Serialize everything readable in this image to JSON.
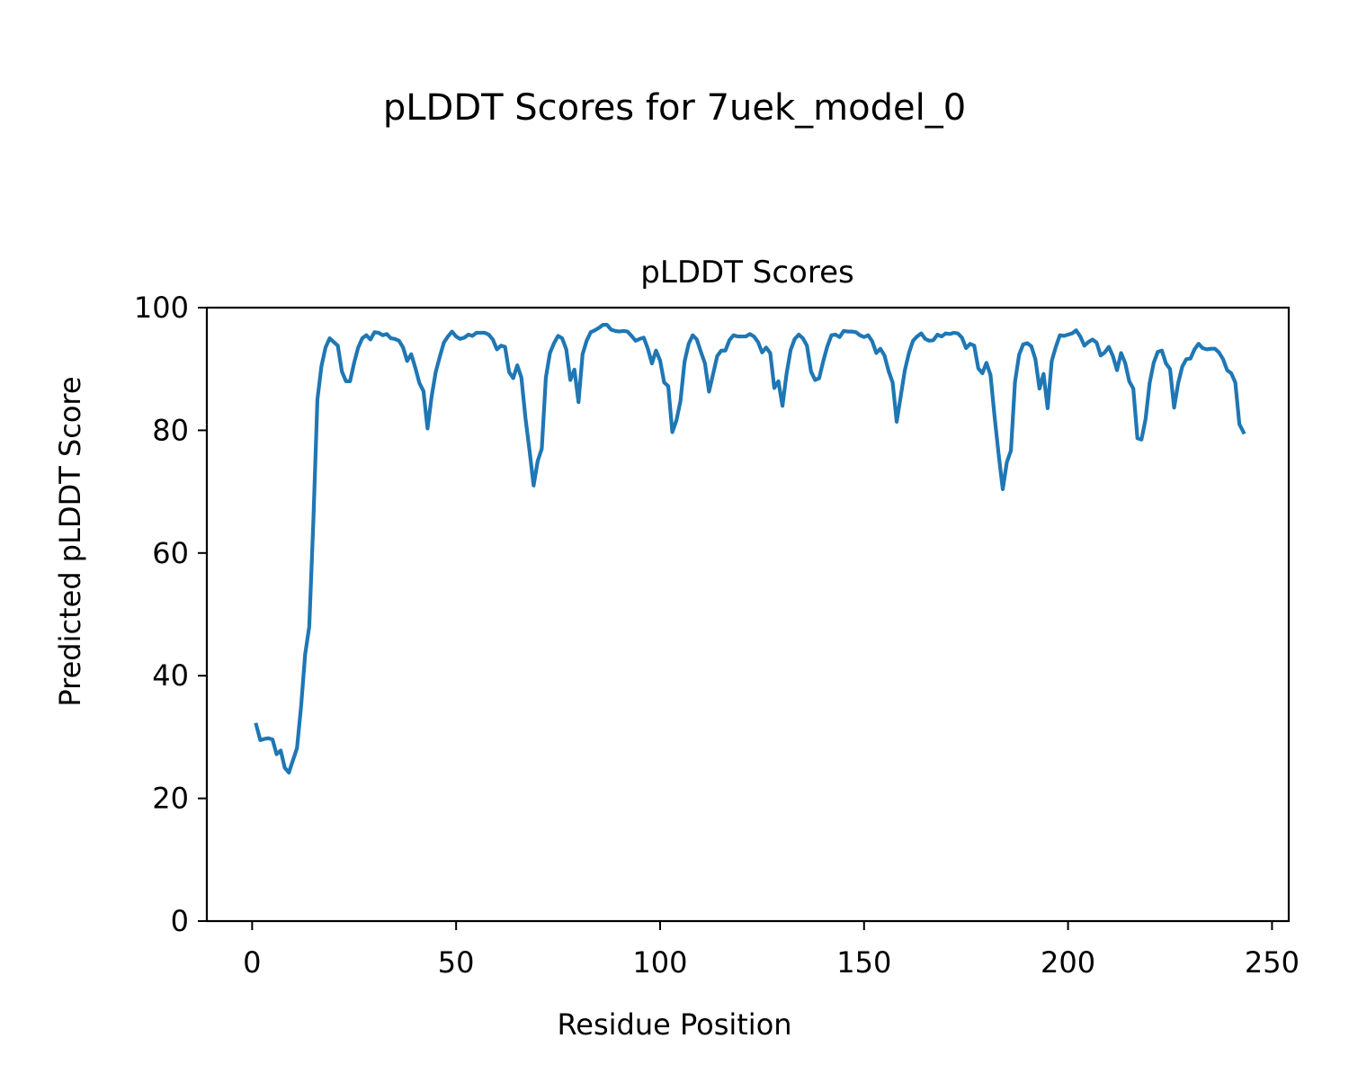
{
  "figure": {
    "suptitle": "pLDDT Scores for 7uek_model_0"
  },
  "chart_data": {
    "type": "line",
    "title": "pLDDT Scores",
    "xlabel": "Residue Position",
    "ylabel": "Predicted pLDDT Score",
    "xlim": [
      -11.1,
      254.1
    ],
    "ylim": [
      0,
      100
    ],
    "xticks": [
      0,
      50,
      100,
      150,
      200,
      250
    ],
    "yticks": [
      0,
      20,
      40,
      60,
      80,
      100
    ],
    "grid": false,
    "legend": null,
    "colors": {
      "line": "#1f77b4",
      "axes": "#000000",
      "background": "#ffffff"
    },
    "series": [
      {
        "x": [
          1,
          2,
          3,
          4,
          5,
          6,
          7,
          8,
          9,
          10,
          11,
          12,
          13,
          14,
          15,
          16,
          17,
          18,
          19,
          20,
          21,
          22,
          23,
          24,
          25,
          26,
          27,
          28,
          29,
          30,
          31,
          32,
          33,
          34,
          35,
          36,
          37,
          38,
          39,
          40,
          41,
          42,
          43,
          44,
          45,
          46,
          47,
          48,
          49,
          50,
          51,
          52,
          53,
          54,
          55,
          56,
          57,
          58,
          59,
          60,
          61,
          62,
          63,
          64,
          65,
          66,
          67,
          68,
          69,
          70,
          71,
          72,
          73,
          74,
          75,
          76,
          77,
          78,
          79,
          80,
          81,
          82,
          83,
          84,
          85,
          86,
          87,
          88,
          89,
          90,
          91,
          92,
          93,
          94,
          95,
          96,
          97,
          98,
          99,
          100,
          101,
          102,
          103,
          104,
          105,
          106,
          107,
          108,
          109,
          110,
          111,
          112,
          113,
          114,
          115,
          116,
          117,
          118,
          119,
          120,
          121,
          122,
          123,
          124,
          125,
          126,
          127,
          128,
          129,
          130,
          131,
          132,
          133,
          134,
          135,
          136,
          137,
          138,
          139,
          140,
          141,
          142,
          143,
          144,
          145,
          146,
          147,
          148,
          149,
          150,
          151,
          152,
          153,
          154,
          155,
          156,
          157,
          158,
          159,
          160,
          161,
          162,
          163,
          164,
          165,
          166,
          167,
          168,
          169,
          170,
          171,
          172,
          173,
          174,
          175,
          176,
          177,
          178,
          179,
          180,
          181,
          182,
          183,
          184,
          185,
          186,
          187,
          188,
          189,
          190,
          191,
          192,
          193,
          194,
          195,
          196,
          197,
          198,
          199,
          200,
          201,
          202,
          203,
          204,
          205,
          206,
          207,
          208,
          209,
          210,
          211,
          212,
          213,
          214,
          215,
          216,
          217,
          218,
          219,
          220,
          221,
          222,
          223,
          224,
          225,
          226,
          227,
          228,
          229,
          230,
          231,
          232,
          233,
          234,
          235,
          236,
          237,
          238,
          239,
          240,
          241,
          242,
          243
        ],
        "values": [
          32,
          29.5,
          29.7,
          29.8,
          29.6,
          27.2,
          27.8,
          25,
          24.2,
          26.2,
          28.2,
          35,
          43.5,
          48,
          65,
          85,
          90.5,
          93.5,
          95,
          94.4,
          93.8,
          89.6,
          88,
          88,
          91,
          93.5,
          95,
          95.5,
          94.8,
          96,
          95.9,
          95.5,
          95.7,
          95,
          94.9,
          94.6,
          93.5,
          91.3,
          92.4,
          90.2,
          87.7,
          86.4,
          80.3,
          85.5,
          89.5,
          92,
          94.3,
          95.3,
          96.1,
          95.3,
          94.9,
          95.1,
          95.6,
          95.4,
          95.9,
          95.9,
          95.9,
          95.6,
          94.8,
          93.2,
          93.8,
          93.6,
          89.5,
          88.5,
          90.6,
          88.6,
          82,
          76.7,
          71,
          75,
          77,
          88.6,
          92.6,
          94.2,
          95.4,
          95,
          93.2,
          88.2,
          89.9,
          84.6,
          92.4,
          94.6,
          96,
          96.3,
          96.7,
          97.2,
          97.2,
          96.4,
          96.2,
          96.1,
          96.2,
          96.1,
          95.4,
          94.6,
          94.9,
          95.1,
          93.3,
          90.9,
          93,
          91.4,
          87.8,
          87.2,
          79.7,
          81.6,
          84.8,
          91.2,
          94.1,
          95.5,
          94.8,
          92.8,
          90.9,
          86.3,
          89.2,
          92.1,
          93,
          93,
          94.7,
          95.5,
          95.3,
          95.3,
          95.3,
          95.7,
          95.3,
          94.4,
          92.7,
          93.5,
          92.6,
          86.9,
          88,
          84,
          89.2,
          93.1,
          94.9,
          95.6,
          95,
          93.8,
          89.6,
          88.2,
          88.5,
          91.3,
          93.7,
          95.5,
          95.6,
          95.2,
          96.2,
          96.1,
          96.1,
          96,
          95.5,
          95.2,
          95.5,
          94.5,
          92.6,
          93.3,
          92.2,
          89.7,
          87.8,
          81.4,
          85.6,
          89.8,
          92.6,
          94.6,
          95.3,
          95.8,
          94.9,
          94.6,
          94.7,
          95.6,
          95.3,
          95.8,
          95.7,
          95.9,
          95.8,
          95.1,
          93.4,
          94.1,
          93.8,
          90.1,
          89.3,
          91,
          89,
          82.2,
          76,
          70.4,
          74.8,
          76.7,
          87.9,
          92.3,
          94,
          94.2,
          93.7,
          91.6,
          86.8,
          89.2,
          83.6,
          91.3,
          93.6,
          95.5,
          95.4,
          95.6,
          95.8,
          96.3,
          95.3,
          93.8,
          94.4,
          94.8,
          94.3,
          92.2,
          92.7,
          93.6,
          92.1,
          89.8,
          92.6,
          91,
          88,
          86.8,
          78.7,
          78.5,
          81.8,
          87.7,
          91,
          92.8,
          93,
          90.9,
          90,
          83.7,
          87.7,
          90.4,
          91.6,
          91.7,
          93.2,
          94.1,
          93.4,
          93.2,
          93.3,
          93.3,
          92.7,
          91.6,
          89.8,
          89.3,
          87.8,
          81,
          79.7
        ]
      }
    ]
  }
}
